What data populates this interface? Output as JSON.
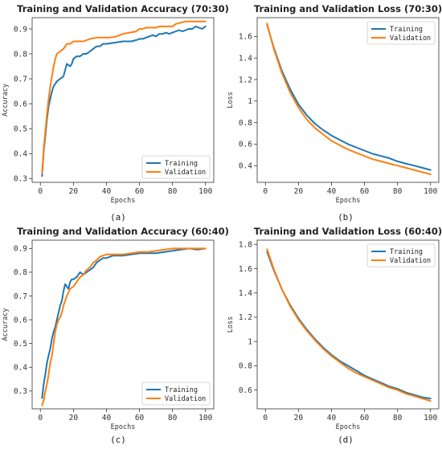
{
  "colors": {
    "training": "#1f77b4",
    "validation": "#ff7f0e"
  },
  "chart_data": [
    {
      "type": "line",
      "caption": "(a)",
      "title": "Training and Validation Accuracy (70:30)",
      "xlabel": "Epochs",
      "ylabel": "Accuracy",
      "xlim": [
        -5,
        105
      ],
      "ylim": [
        0.285,
        0.945
      ],
      "xticks": [
        0,
        20,
        40,
        60,
        80,
        100
      ],
      "yticks": [
        0.3,
        0.4,
        0.5,
        0.6,
        0.7,
        0.8,
        0.9
      ],
      "legend": "lower-right",
      "series": [
        {
          "name": "Training",
          "color": "#1f77b4",
          "points": [
            [
              1,
              0.31
            ],
            [
              2,
              0.41
            ],
            [
              3,
              0.47
            ],
            [
              4,
              0.54
            ],
            [
              5,
              0.59
            ],
            [
              6,
              0.62
            ],
            [
              7,
              0.65
            ],
            [
              8,
              0.67
            ],
            [
              9,
              0.68
            ],
            [
              10,
              0.69
            ],
            [
              12,
              0.7
            ],
            [
              14,
              0.71
            ],
            [
              16,
              0.76
            ],
            [
              18,
              0.75
            ],
            [
              19,
              0.76
            ],
            [
              20,
              0.78
            ],
            [
              22,
              0.79
            ],
            [
              24,
              0.79
            ],
            [
              26,
              0.8
            ],
            [
              28,
              0.8
            ],
            [
              30,
              0.81
            ],
            [
              32,
              0.82
            ],
            [
              34,
              0.83
            ],
            [
              36,
              0.83
            ],
            [
              38,
              0.84
            ],
            [
              40,
              0.84
            ],
            [
              45,
              0.845
            ],
            [
              50,
              0.85
            ],
            [
              55,
              0.85
            ],
            [
              58,
              0.855
            ],
            [
              60,
              0.86
            ],
            [
              62,
              0.86
            ],
            [
              64,
              0.865
            ],
            [
              66,
              0.87
            ],
            [
              68,
              0.875
            ],
            [
              70,
              0.87
            ],
            [
              72,
              0.88
            ],
            [
              74,
              0.88
            ],
            [
              76,
              0.885
            ],
            [
              78,
              0.88
            ],
            [
              80,
              0.885
            ],
            [
              82,
              0.89
            ],
            [
              84,
              0.895
            ],
            [
              86,
              0.89
            ],
            [
              88,
              0.895
            ],
            [
              90,
              0.9
            ],
            [
              92,
              0.9
            ],
            [
              94,
              0.91
            ],
            [
              96,
              0.905
            ],
            [
              98,
              0.9
            ],
            [
              100,
              0.91
            ]
          ]
        },
        {
          "name": "Validation",
          "color": "#ff7f0e",
          "points": [
            [
              1,
              0.32
            ],
            [
              2,
              0.42
            ],
            [
              3,
              0.49
            ],
            [
              4,
              0.56
            ],
            [
              5,
              0.62
            ],
            [
              6,
              0.67
            ],
            [
              7,
              0.71
            ],
            [
              8,
              0.75
            ],
            [
              9,
              0.78
            ],
            [
              10,
              0.8
            ],
            [
              12,
              0.81
            ],
            [
              14,
              0.82
            ],
            [
              16,
              0.84
            ],
            [
              18,
              0.84
            ],
            [
              20,
              0.85
            ],
            [
              22,
              0.85
            ],
            [
              26,
              0.85
            ],
            [
              30,
              0.86
            ],
            [
              34,
              0.865
            ],
            [
              38,
              0.865
            ],
            [
              42,
              0.865
            ],
            [
              46,
              0.87
            ],
            [
              50,
              0.88
            ],
            [
              54,
              0.885
            ],
            [
              58,
              0.89
            ],
            [
              60,
              0.9
            ],
            [
              62,
              0.9
            ],
            [
              64,
              0.905
            ],
            [
              70,
              0.905
            ],
            [
              72,
              0.91
            ],
            [
              80,
              0.91
            ],
            [
              82,
              0.92
            ],
            [
              88,
              0.93
            ],
            [
              100,
              0.93
            ]
          ]
        }
      ]
    },
    {
      "type": "line",
      "caption": "(b)",
      "title": "Training and Validation Loss (70:30)",
      "xlabel": "Epochs",
      "ylabel": "Loss",
      "xlim": [
        -5,
        105
      ],
      "ylim": [
        0.245,
        1.775
      ],
      "xticks": [
        0,
        20,
        40,
        60,
        80,
        100
      ],
      "yticks": [
        0.4,
        0.6,
        0.8,
        1.0,
        1.2,
        1.4,
        1.6
      ],
      "legend": "upper-right",
      "series": [
        {
          "name": "Training",
          "color": "#1f77b4",
          "points": [
            [
              1,
              1.71
            ],
            [
              5,
              1.5
            ],
            [
              10,
              1.28
            ],
            [
              15,
              1.11
            ],
            [
              20,
              0.97
            ],
            [
              25,
              0.87
            ],
            [
              30,
              0.79
            ],
            [
              35,
              0.73
            ],
            [
              40,
              0.68
            ],
            [
              45,
              0.64
            ],
            [
              50,
              0.6
            ],
            [
              55,
              0.57
            ],
            [
              60,
              0.54
            ],
            [
              65,
              0.51
            ],
            [
              70,
              0.49
            ],
            [
              75,
              0.47
            ],
            [
              80,
              0.44
            ],
            [
              85,
              0.42
            ],
            [
              90,
              0.4
            ],
            [
              95,
              0.38
            ],
            [
              100,
              0.36
            ]
          ]
        },
        {
          "name": "Validation",
          "color": "#ff7f0e",
          "points": [
            [
              1,
              1.72
            ],
            [
              5,
              1.49
            ],
            [
              10,
              1.26
            ],
            [
              15,
              1.08
            ],
            [
              20,
              0.94
            ],
            [
              25,
              0.83
            ],
            [
              30,
              0.75
            ],
            [
              35,
              0.69
            ],
            [
              40,
              0.63
            ],
            [
              45,
              0.59
            ],
            [
              50,
              0.55
            ],
            [
              55,
              0.52
            ],
            [
              60,
              0.49
            ],
            [
              65,
              0.46
            ],
            [
              70,
              0.44
            ],
            [
              75,
              0.42
            ],
            [
              80,
              0.4
            ],
            [
              85,
              0.38
            ],
            [
              90,
              0.36
            ],
            [
              95,
              0.34
            ],
            [
              100,
              0.32
            ]
          ]
        }
      ]
    },
    {
      "type": "line",
      "caption": "(c)",
      "title": "Training and Validation Accuracy (60:40)",
      "xlabel": "Epochs",
      "ylabel": "Accuracy",
      "xlim": [
        -5,
        105
      ],
      "ylim": [
        0.225,
        0.935
      ],
      "xticks": [
        0,
        20,
        40,
        60,
        80,
        100
      ],
      "yticks": [
        0.3,
        0.4,
        0.5,
        0.6,
        0.7,
        0.8,
        0.9
      ],
      "legend": "lower-right",
      "series": [
        {
          "name": "Training",
          "color": "#1f77b4",
          "points": [
            [
              1,
              0.27
            ],
            [
              2,
              0.33
            ],
            [
              3,
              0.37
            ],
            [
              4,
              0.42
            ],
            [
              5,
              0.45
            ],
            [
              6,
              0.48
            ],
            [
              7,
              0.52
            ],
            [
              8,
              0.55
            ],
            [
              9,
              0.57
            ],
            [
              10,
              0.6
            ],
            [
              11,
              0.63
            ],
            [
              12,
              0.66
            ],
            [
              13,
              0.68
            ],
            [
              14,
              0.72
            ],
            [
              15,
              0.75
            ],
            [
              16,
              0.74
            ],
            [
              17,
              0.73
            ],
            [
              18,
              0.76
            ],
            [
              19,
              0.77
            ],
            [
              20,
              0.77
            ],
            [
              22,
              0.78
            ],
            [
              24,
              0.8
            ],
            [
              26,
              0.79
            ],
            [
              28,
              0.8
            ],
            [
              30,
              0.81
            ],
            [
              32,
              0.82
            ],
            [
              34,
              0.84
            ],
            [
              36,
              0.85
            ],
            [
              38,
              0.86
            ],
            [
              40,
              0.86
            ],
            [
              44,
              0.87
            ],
            [
              50,
              0.87
            ],
            [
              55,
              0.875
            ],
            [
              60,
              0.88
            ],
            [
              65,
              0.88
            ],
            [
              70,
              0.88
            ],
            [
              75,
              0.885
            ],
            [
              80,
              0.89
            ],
            [
              85,
              0.895
            ],
            [
              90,
              0.9
            ],
            [
              95,
              0.895
            ],
            [
              100,
              0.9
            ]
          ]
        },
        {
          "name": "Validation",
          "color": "#ff7f0e",
          "points": [
            [
              1,
              0.24
            ],
            [
              2,
              0.26
            ],
            [
              3,
              0.3
            ],
            [
              4,
              0.33
            ],
            [
              5,
              0.37
            ],
            [
              6,
              0.42
            ],
            [
              7,
              0.45
            ],
            [
              8,
              0.5
            ],
            [
              9,
              0.55
            ],
            [
              10,
              0.58
            ],
            [
              11,
              0.6
            ],
            [
              12,
              0.61
            ],
            [
              13,
              0.63
            ],
            [
              14,
              0.66
            ],
            [
              15,
              0.68
            ],
            [
              16,
              0.7
            ],
            [
              18,
              0.73
            ],
            [
              20,
              0.74
            ],
            [
              22,
              0.76
            ],
            [
              24,
              0.78
            ],
            [
              26,
              0.79
            ],
            [
              28,
              0.81
            ],
            [
              30,
              0.82
            ],
            [
              32,
              0.84
            ],
            [
              34,
              0.85
            ],
            [
              36,
              0.865
            ],
            [
              38,
              0.87
            ],
            [
              40,
              0.875
            ],
            [
              45,
              0.875
            ],
            [
              50,
              0.875
            ],
            [
              55,
              0.88
            ],
            [
              60,
              0.885
            ],
            [
              65,
              0.885
            ],
            [
              70,
              0.89
            ],
            [
              75,
              0.895
            ],
            [
              80,
              0.9
            ],
            [
              90,
              0.9
            ],
            [
              100,
              0.9
            ]
          ]
        }
      ]
    },
    {
      "type": "line",
      "caption": "(d)",
      "title": "Training and Validation Loss (60:40)",
      "xlabel": "Epochs",
      "ylabel": "Loss",
      "xlim": [
        -5,
        105
      ],
      "ylim": [
        0.445,
        1.835
      ],
      "xticks": [
        0,
        20,
        40,
        60,
        80,
        100
      ],
      "yticks": [
        0.6,
        0.8,
        1.0,
        1.2,
        1.4,
        1.6,
        1.8
      ],
      "legend": "upper-right",
      "series": [
        {
          "name": "Training",
          "color": "#1f77b4",
          "points": [
            [
              1,
              1.74
            ],
            [
              5,
              1.59
            ],
            [
              10,
              1.43
            ],
            [
              15,
              1.3
            ],
            [
              20,
              1.19
            ],
            [
              25,
              1.1
            ],
            [
              30,
              1.02
            ],
            [
              35,
              0.95
            ],
            [
              40,
              0.89
            ],
            [
              45,
              0.84
            ],
            [
              50,
              0.8
            ],
            [
              55,
              0.76
            ],
            [
              60,
              0.72
            ],
            [
              65,
              0.69
            ],
            [
              70,
              0.66
            ],
            [
              75,
              0.63
            ],
            [
              80,
              0.61
            ],
            [
              85,
              0.58
            ],
            [
              90,
              0.56
            ],
            [
              95,
              0.54
            ],
            [
              100,
              0.53
            ]
          ]
        },
        {
          "name": "Validation",
          "color": "#ff7f0e",
          "points": [
            [
              1,
              1.76
            ],
            [
              5,
              1.6
            ],
            [
              10,
              1.43
            ],
            [
              15,
              1.29
            ],
            [
              20,
              1.18
            ],
            [
              25,
              1.09
            ],
            [
              30,
              1.01
            ],
            [
              35,
              0.94
            ],
            [
              40,
              0.88
            ],
            [
              45,
              0.83
            ],
            [
              50,
              0.78
            ],
            [
              55,
              0.74
            ],
            [
              60,
              0.71
            ],
            [
              65,
              0.68
            ],
            [
              70,
              0.65
            ],
            [
              75,
              0.62
            ],
            [
              80,
              0.6
            ],
            [
              85,
              0.57
            ],
            [
              90,
              0.55
            ],
            [
              95,
              0.53
            ],
            [
              100,
              0.51
            ]
          ]
        }
      ]
    }
  ]
}
